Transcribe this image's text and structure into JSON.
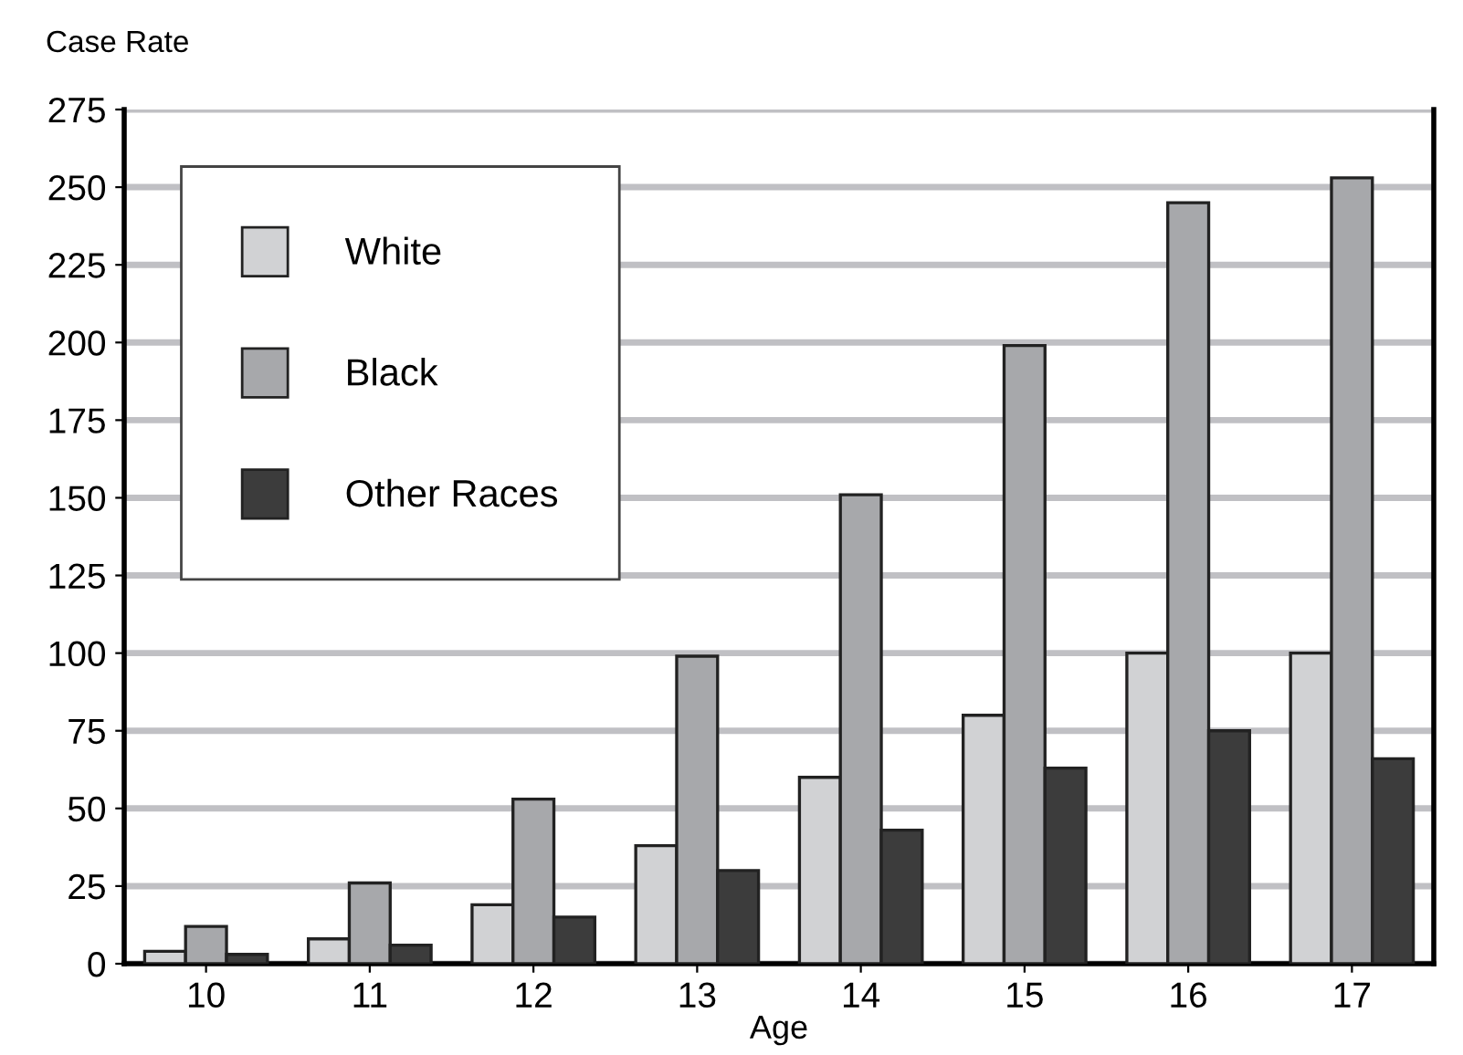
{
  "chart_data": {
    "type": "bar",
    "xlabel": "Age",
    "ylabel": "Case Rate",
    "categories": [
      "10",
      "11",
      "12",
      "13",
      "14",
      "15",
      "16",
      "17"
    ],
    "series": [
      {
        "name": "White",
        "color": "#d1d2d4",
        "values": [
          4,
          8,
          19,
          38,
          60,
          80,
          100,
          100
        ]
      },
      {
        "name": "Black",
        "color": "#a7a8ab",
        "values": [
          12,
          26,
          53,
          99,
          151,
          199,
          245,
          253
        ]
      },
      {
        "name": "Other Races",
        "color": "#3c3c3c",
        "values": [
          3,
          6,
          15,
          30,
          43,
          63,
          75,
          66
        ]
      }
    ],
    "ylim": [
      0,
      275
    ],
    "yticks": [
      0,
      25,
      50,
      75,
      100,
      125,
      150,
      175,
      200,
      225,
      250,
      275
    ],
    "grid": "y",
    "legend": "top left"
  }
}
